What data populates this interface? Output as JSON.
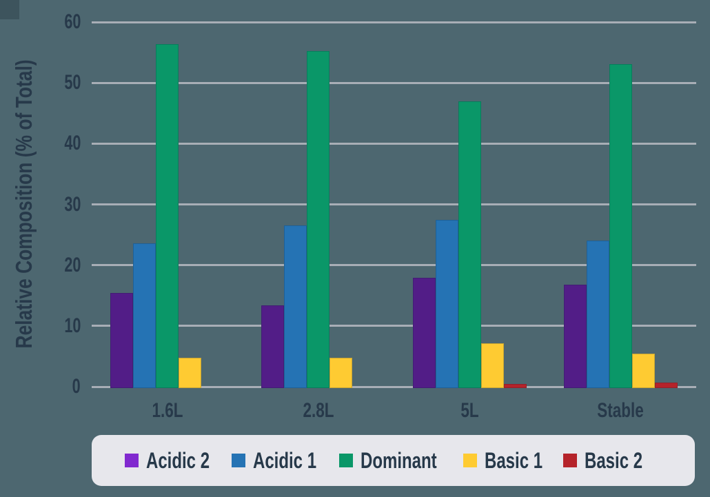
{
  "colors": {
    "background": "#4d6770",
    "corner_accent": "#3d545d",
    "gridline": "#a8aeb6",
    "text": "#27394a",
    "legend_background": "#e7e7ec"
  },
  "chart_data": {
    "type": "bar",
    "title": "",
    "xlabel": "",
    "ylabel": "Relative Composition (% of Total)",
    "ylim": [
      0,
      60
    ],
    "yticks": [
      0,
      10,
      20,
      30,
      40,
      50,
      60
    ],
    "grid": true,
    "legend_position": "bottom",
    "categories": [
      "1.6L",
      "2.8L",
      "5L",
      "Stable"
    ],
    "series": [
      {
        "name": "Acidic 2",
        "color": "#521d87",
        "legend_color": "#8129cf",
        "values": [
          15.4,
          13.4,
          17.9,
          16.8
        ]
      },
      {
        "name": "Acidic 1",
        "color": "#2573b4",
        "legend_color": "#2573b4",
        "values": [
          23.6,
          26.5,
          27.4,
          24.1
        ]
      },
      {
        "name": "Dominant",
        "color": "#0a9768",
        "legend_color": "#0a9768",
        "values": [
          56.4,
          55.2,
          47.0,
          53.1
        ]
      },
      {
        "name": "Basic 1",
        "color": "#fecb32",
        "legend_color": "#fecb32",
        "values": [
          4.8,
          4.8,
          7.1,
          5.4
        ]
      },
      {
        "name": "Basic 2",
        "color": "#b5232a",
        "legend_color": "#b5232a",
        "values": [
          0,
          0,
          0.5,
          0.7
        ]
      }
    ]
  }
}
